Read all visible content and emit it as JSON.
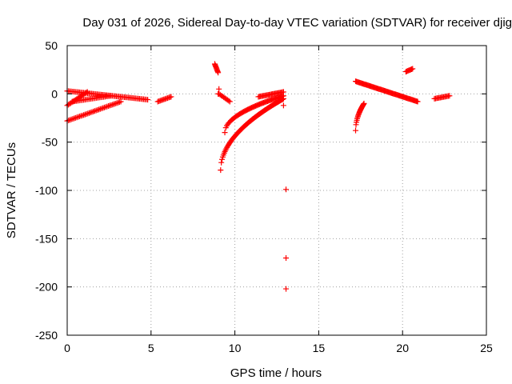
{
  "chart_data": {
    "type": "scatter",
    "title": "Day 031 of 2026, Sidereal Day-to-day VTEC variation (SDTVAR) for receiver djig",
    "xlabel": "GPS time / hours",
    "ylabel": "SDTVAR / TECUs",
    "xlim": [
      0,
      25
    ],
    "ylim": [
      -250,
      50
    ],
    "xticks": [
      0,
      5,
      10,
      15,
      20,
      25
    ],
    "yticks": [
      50,
      0,
      -50,
      -100,
      -150,
      -200,
      -250
    ],
    "grid": true,
    "marker": "plus",
    "color": "#ff0000",
    "series": [
      {
        "name": "arc-0a-top",
        "x0": 0.0,
        "x1": 4.8,
        "y0": 3,
        "y1": -6,
        "n": 60
      },
      {
        "name": "arc-0b-rise",
        "x0": 0.0,
        "x1": 1.2,
        "y0": -12,
        "y1": 2,
        "n": 18
      },
      {
        "name": "arc-0c-mid",
        "x0": 0.3,
        "x1": 2.6,
        "y0": -8,
        "y1": -2,
        "n": 28
      },
      {
        "name": "arc-0d-lower",
        "x0": 0.0,
        "x1": 3.2,
        "y0": -28,
        "y1": -8,
        "n": 40
      },
      {
        "name": "arc-6",
        "x0": 5.4,
        "x1": 6.2,
        "y0": -8,
        "y1": -3,
        "n": 12
      },
      {
        "name": "arc-9-top",
        "x0": 8.8,
        "x1": 9.0,
        "y0": 31,
        "y1": 22,
        "n": 10
      },
      {
        "name": "arc-9-small",
        "x0": 9.05,
        "x1": 9.7,
        "y0": 0,
        "y1": -8,
        "n": 10
      },
      {
        "name": "arc-9-deep",
        "x0": 9.15,
        "x1": 12.9,
        "y0": -79,
        "y1": -5,
        "n": 90,
        "curve": "sqrt"
      },
      {
        "name": "arc-9-mid",
        "x0": 9.4,
        "x1": 12.9,
        "y0": -40,
        "y1": -2,
        "n": 60,
        "curve": "sqrt"
      },
      {
        "name": "arc-12-loop",
        "x0": 11.4,
        "x1": 12.9,
        "y0": -3,
        "y1": 2,
        "n": 24
      },
      {
        "name": "arc-17-low",
        "x0": 17.2,
        "x1": 17.7,
        "y0": -38,
        "y1": -10,
        "n": 22,
        "curve": "sqrt"
      },
      {
        "name": "arc-17-high",
        "x0": 17.2,
        "x1": 20.9,
        "y0": 13,
        "y1": -8,
        "n": 70
      },
      {
        "name": "arc-20-top",
        "x0": 20.2,
        "x1": 20.6,
        "y0": 23,
        "y1": 26,
        "n": 8
      },
      {
        "name": "arc-22",
        "x0": 21.9,
        "x1": 22.8,
        "y0": -5,
        "y1": -2,
        "n": 14
      }
    ],
    "outliers": [
      {
        "x": 13.05,
        "y": -99
      },
      {
        "x": 13.05,
        "y": -170
      },
      {
        "x": 13.05,
        "y": -202
      },
      {
        "x": 9.05,
        "y": 5
      },
      {
        "x": 9.0,
        "y": 0
      },
      {
        "x": 12.9,
        "y": -12
      }
    ]
  }
}
